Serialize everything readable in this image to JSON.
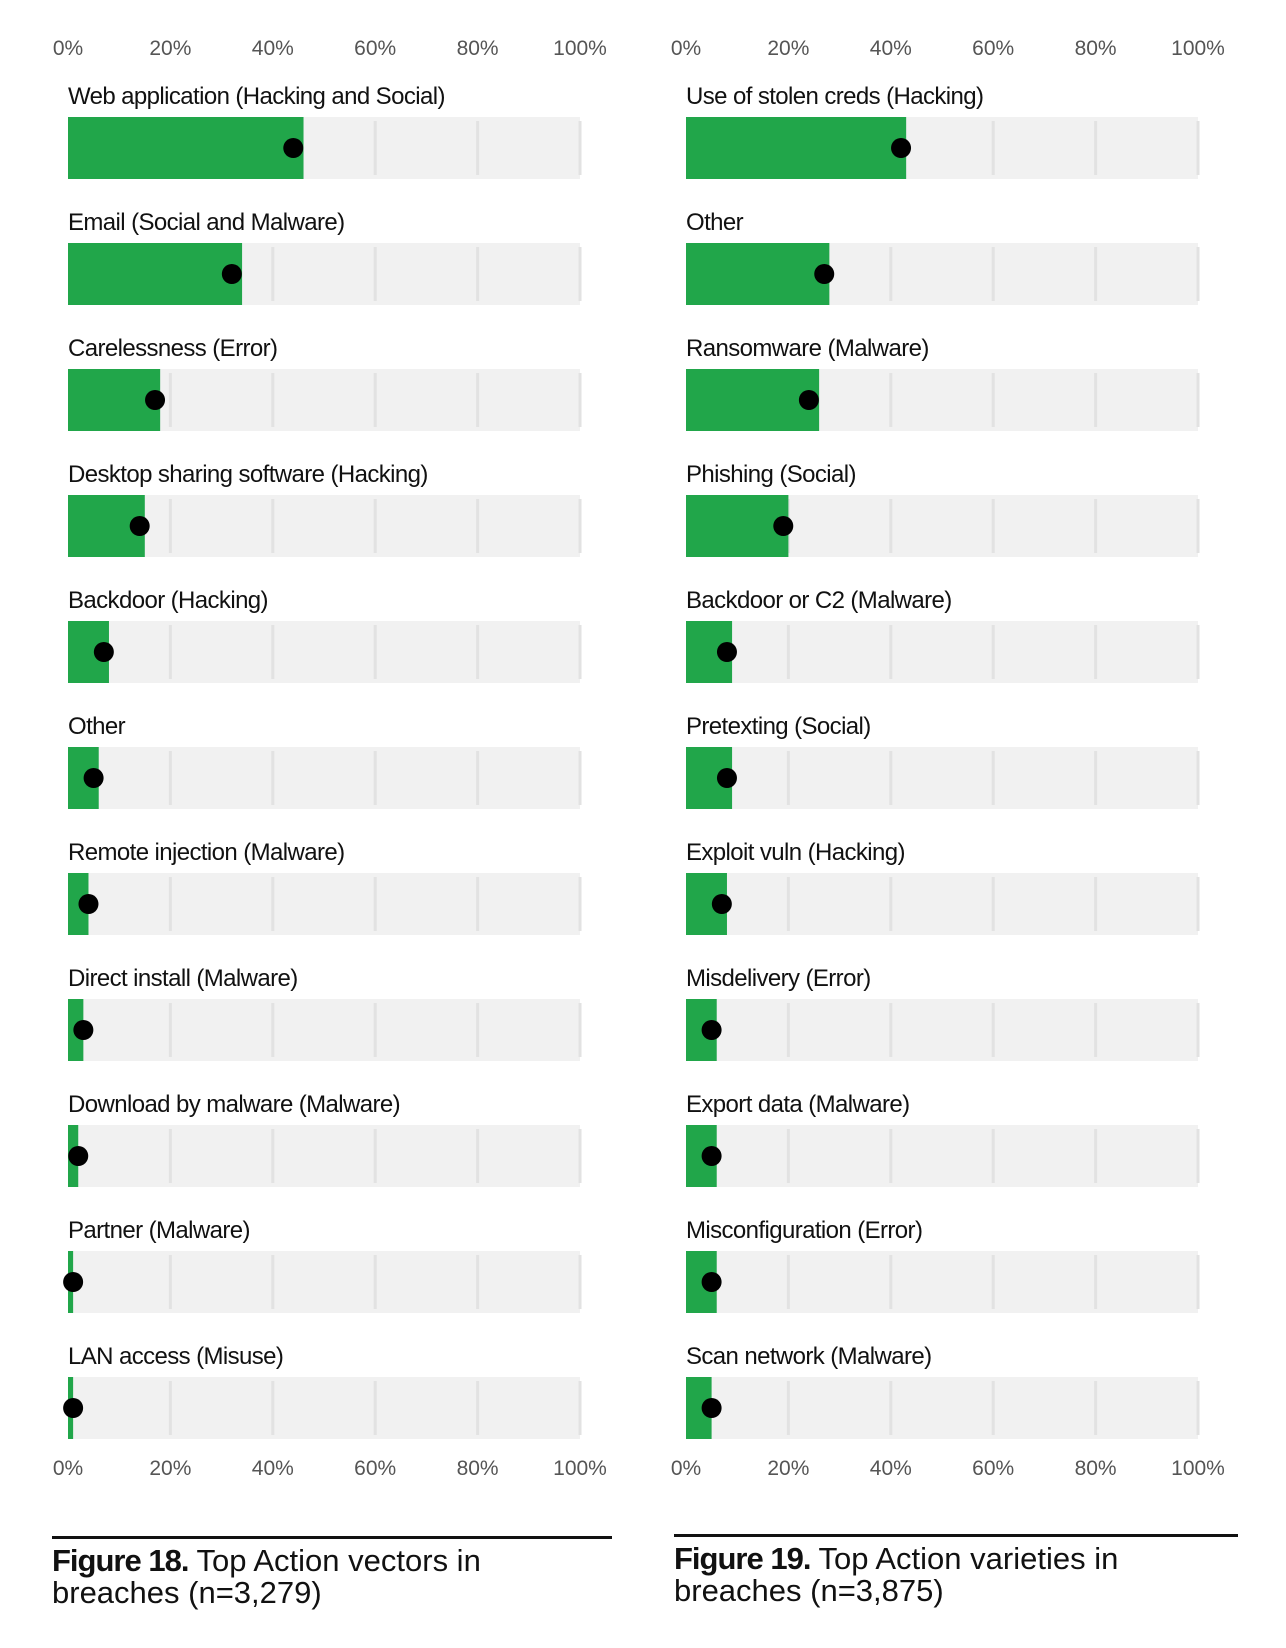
{
  "colors": {
    "bar": "#21a64a",
    "dot": "#000000",
    "grid": "#e2e2e2",
    "band": "#f1f1f1",
    "text": "#111111",
    "axis_text": "#555555"
  },
  "chart_data": [
    {
      "type": "bar",
      "orientation": "horizontal",
      "caption_label": "Figure 18.",
      "caption_text": "Top Action vectors in breaches (n=3,279)",
      "xlim": [
        0,
        100
      ],
      "tick_labels": [
        "0%",
        "20%",
        "40%",
        "60%",
        "80%",
        "100%"
      ],
      "ticks": [
        0,
        20,
        40,
        60,
        80,
        100
      ],
      "categories": [
        "Web application (Hacking and Social)",
        "Email (Social and Malware)",
        "Carelessness (Error)",
        "Desktop sharing software (Hacking)",
        "Backdoor (Hacking)",
        "Other",
        "Remote injection (Malware)",
        "Direct install (Malware)",
        "Download by malware (Malware)",
        "Partner (Malware)",
        "LAN access (Misuse)"
      ],
      "values": [
        44,
        32,
        17,
        14,
        7,
        5,
        4,
        3,
        2,
        1,
        1
      ],
      "bar_high": [
        46,
        34,
        18,
        15,
        8,
        6,
        4,
        3,
        2,
        1,
        1
      ]
    },
    {
      "type": "bar",
      "orientation": "horizontal",
      "caption_label": "Figure 19.",
      "caption_text": "Top Action varieties in breaches (n=3,875)",
      "xlim": [
        0,
        100
      ],
      "tick_labels": [
        "0%",
        "20%",
        "40%",
        "60%",
        "80%",
        "100%"
      ],
      "ticks": [
        0,
        20,
        40,
        60,
        80,
        100
      ],
      "categories": [
        "Use of stolen creds (Hacking)",
        "Other",
        "Ransomware (Malware)",
        "Phishing (Social)",
        "Backdoor or C2 (Malware)",
        "Pretexting (Social)",
        "Exploit vuln (Hacking)",
        "Misdelivery (Error)",
        "Export data (Malware)",
        "Misconfiguration (Error)",
        "Scan network (Malware)"
      ],
      "values": [
        42,
        27,
        24,
        19,
        8,
        8,
        7,
        5,
        5,
        5,
        5
      ],
      "bar_high": [
        43,
        28,
        26,
        20,
        9,
        9,
        8,
        6,
        6,
        6,
        5
      ]
    }
  ]
}
